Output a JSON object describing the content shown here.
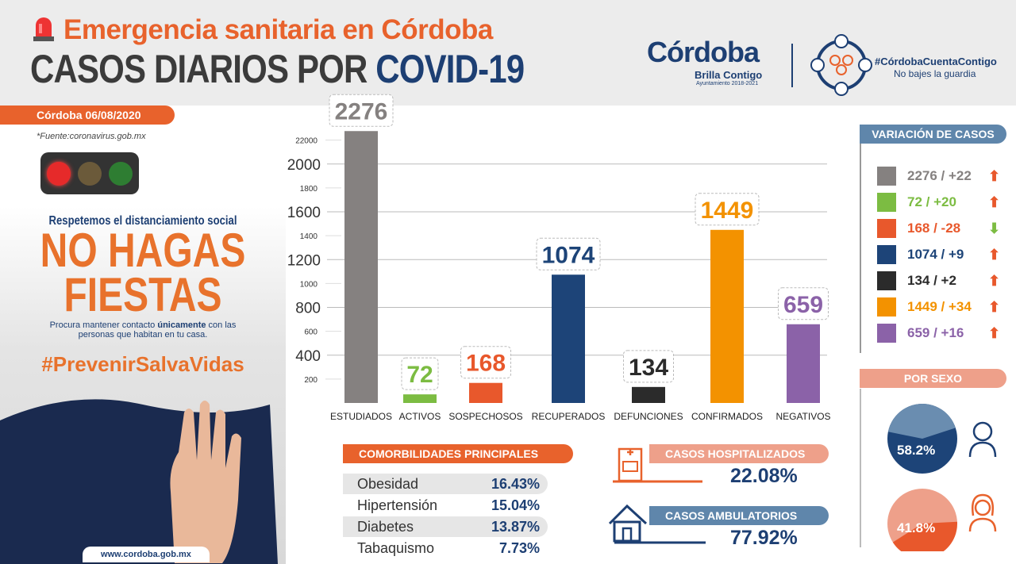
{
  "header": {
    "subtitle": "Emergencia sanitaria en Córdoba",
    "title_a": "CASOS DIARIOS POR",
    "title_b": "COVID-19",
    "logo_text": "Córdoba",
    "logo_sub": "Brilla Contigo",
    "logo_sub2": "Ayuntamiento 2018-2021",
    "hashtag": "#CórdobaCuentaContigo",
    "slogan": "No bajes la guardia"
  },
  "left": {
    "date": "Córdoba 06/08/2020",
    "source": "*Fuente:coronavirus.gob.mx",
    "line1": "Respetemos el distanciamiento social",
    "big1": "NO HAGAS",
    "big2": "FIESTAS",
    "note_a": "Procura mantener contacto ",
    "note_b": "únicamente",
    "note_c": " con las personas que habitan en tu casa.",
    "hashtag": "#PrevenirSalvaVidas",
    "url": "www.cordoba.gob.mx"
  },
  "chart_data": {
    "type": "bar",
    "categories": [
      "ESTUDIADOS",
      "ACTIVOS",
      "SOSPECHOSOS",
      "RECUPERADOS",
      "DEFUNCIONES",
      "CONFIRMADOS",
      "NEGATIVOS"
    ],
    "values": [
      2276,
      72,
      168,
      1074,
      134,
      1449,
      659
    ],
    "colors": [
      "#858180",
      "#7cbc42",
      "#e8582c",
      "#1d4478",
      "#2b2b2b",
      "#f39200",
      "#8b62a8"
    ],
    "yticks_major": [
      "400",
      "800",
      "1200",
      "1600",
      "2000"
    ],
    "yticks_minor": [
      "200",
      "600",
      "1000",
      "1400",
      "1800",
      "22000"
    ],
    "ylim": [
      0,
      2276
    ]
  },
  "variation": {
    "title": "VARIACIÓN DE CASOS",
    "items": [
      {
        "text": "2276 / +22",
        "dir": "up"
      },
      {
        "text": "72 / +20",
        "dir": "up"
      },
      {
        "text": "168 /  -28",
        "dir": "down"
      },
      {
        "text": "1074 / +9",
        "dir": "up"
      },
      {
        "text": "134 / +2",
        "dir": "up"
      },
      {
        "text": "1449 / +34",
        "dir": "up"
      },
      {
        "text": "659 / +16",
        "dir": "up"
      }
    ]
  },
  "sex": {
    "title": "POR SEXO",
    "male": "58.2%",
    "female": "41.8%",
    "male_value": 58.2,
    "female_value": 41.8
  },
  "comorb": {
    "title": "COMORBILIDADES PRINCIPALES",
    "rows": [
      {
        "name": "Obesidad",
        "pct": "16.43%"
      },
      {
        "name": "Hipertensión",
        "pct": "15.04%"
      },
      {
        "name": "Diabetes",
        "pct": "13.87%"
      },
      {
        "name": "Tabaquismo",
        "pct": "7.73%"
      }
    ]
  },
  "hosp": {
    "title": "CASOS HOSPITALIZADOS",
    "pct": "22.08%"
  },
  "amb": {
    "title": "CASOS AMBULATORIOS",
    "pct": "77.92%"
  }
}
